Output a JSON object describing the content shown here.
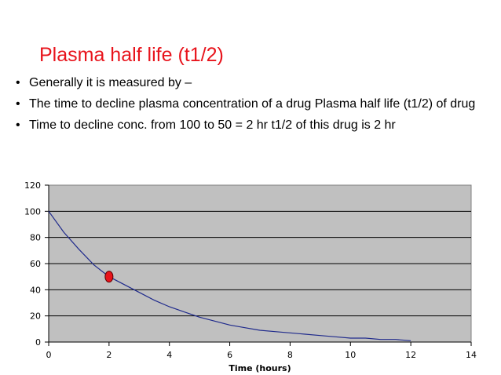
{
  "slide": {
    "title": "Plasma half life (t1/2)",
    "bullet_marker": "•",
    "bullets": [
      "Generally it is measured by –",
      "The time to decline  plasma concentration of a drug Plasma half life (t1/2) of drug",
      "Time to decline conc. from 100 to 50 = 2 hr  t1/2 of this drug is 2 hr"
    ]
  },
  "colors": {
    "title": "#e8141c",
    "plot_background": "#c0c0c0",
    "gridline": "#000000",
    "curve": "#1f2a8c",
    "marker_fill": "#e8141c",
    "marker_outline": "#5a0000"
  },
  "chart_data": {
    "type": "line",
    "title": "",
    "xlabel": "Time (hours)",
    "ylabel": "",
    "xlim": [
      0,
      14
    ],
    "ylim": [
      0,
      120
    ],
    "x_ticks": [
      0,
      2,
      4,
      6,
      8,
      10,
      12,
      14
    ],
    "y_ticks": [
      0,
      20,
      40,
      60,
      80,
      100,
      120
    ],
    "grid": "horizontal",
    "legend": "none",
    "series": [
      {
        "x": [
          0,
          0.5,
          1,
          1.5,
          2,
          2.5,
          3,
          3.5,
          4,
          4.5,
          5,
          5.5,
          6,
          6.5,
          7,
          7.5,
          8,
          8.5,
          9,
          9.5,
          10,
          10.5,
          11,
          11.5,
          12
        ],
        "values": [
          100,
          84,
          71,
          59,
          50,
          44,
          38,
          32,
          27,
          23,
          19,
          16,
          13,
          11,
          9,
          8,
          7,
          6,
          5,
          4,
          3,
          3,
          2,
          2,
          1
        ]
      }
    ],
    "highlight_point": {
      "x": 2,
      "y": 50
    }
  }
}
